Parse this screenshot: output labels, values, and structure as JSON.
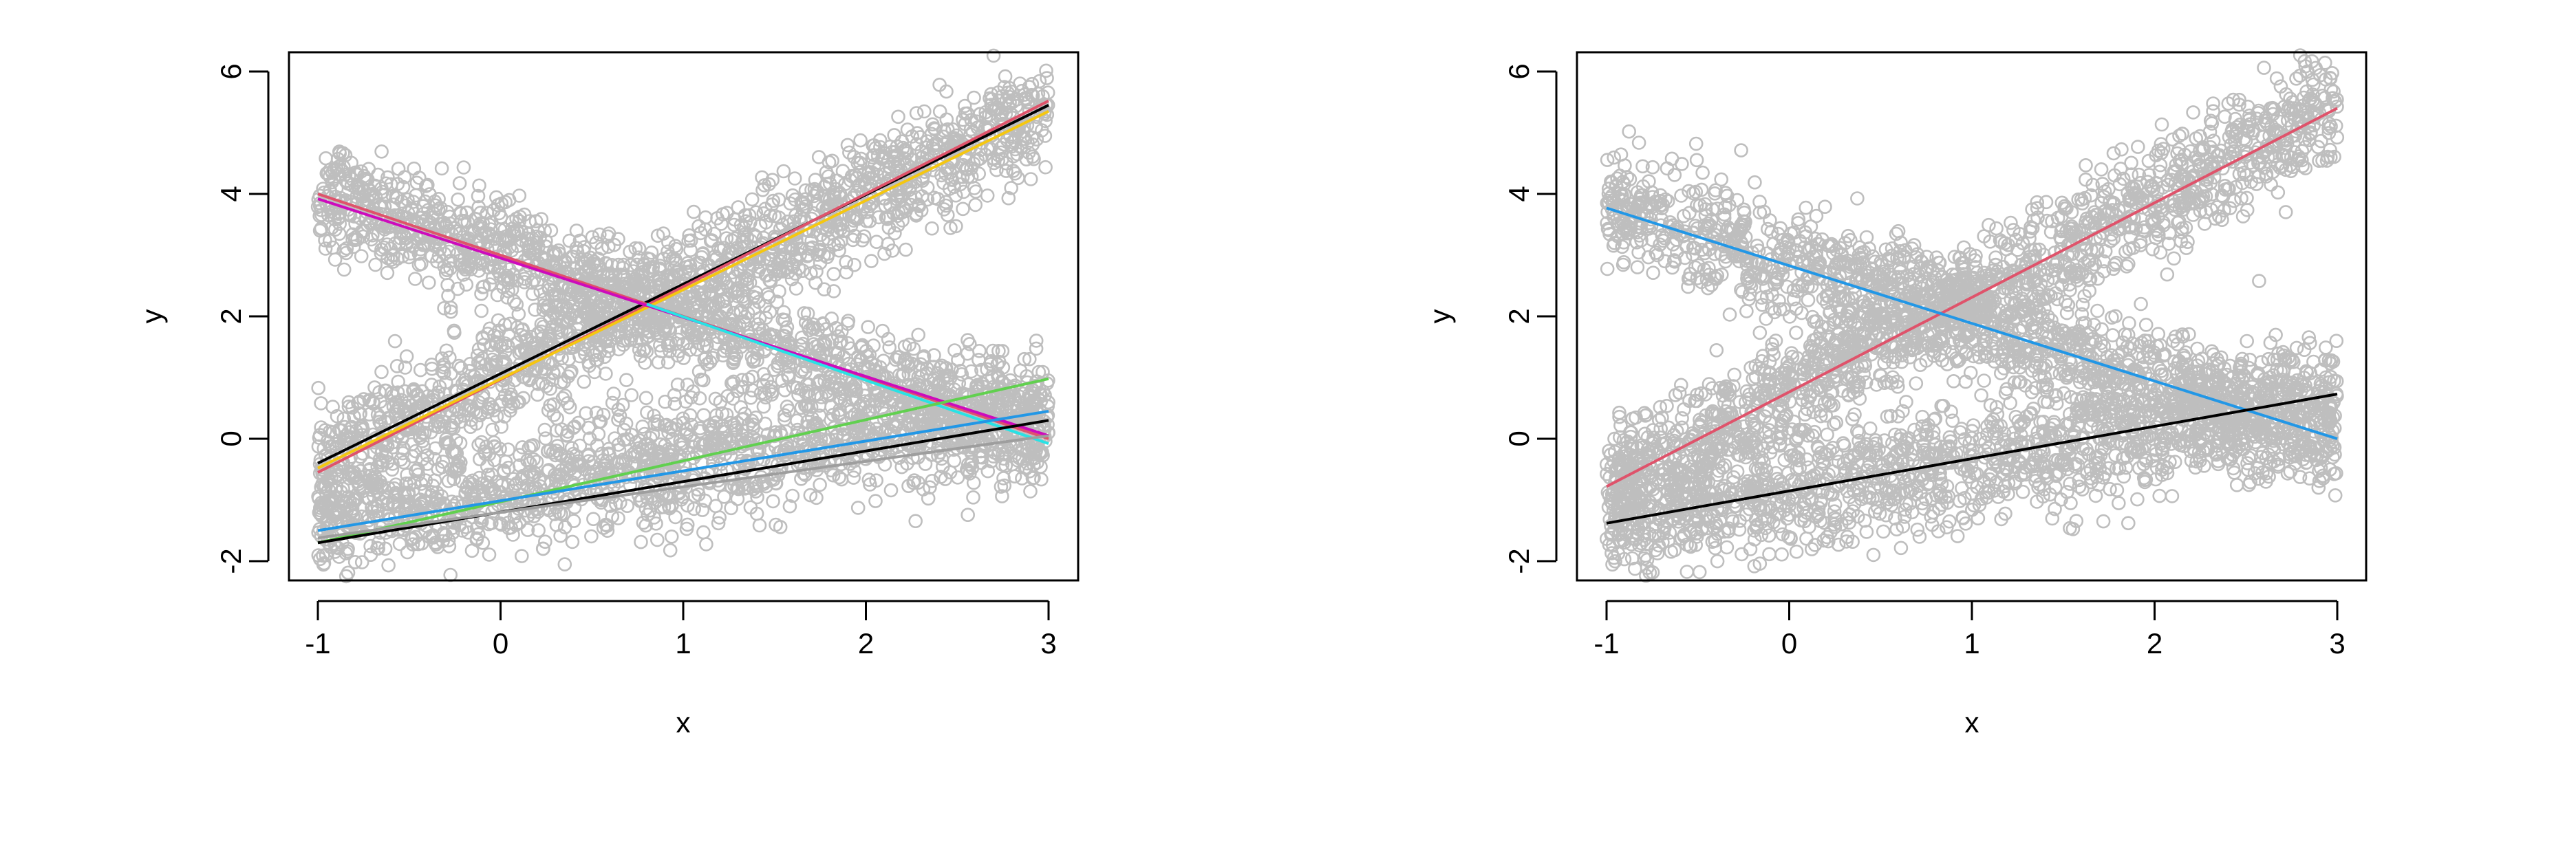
{
  "colors": {
    "points": "#BEBEBE",
    "black": "#000000",
    "red": "#DF536B",
    "green": "#61D04F",
    "blue": "#2297E6",
    "cyan": "#28E2E5",
    "magenta": "#CD0BBC",
    "yellow": "#F5C710",
    "gray": "#9E9E9E"
  },
  "chart_data": [
    {
      "type": "scatter",
      "title": "",
      "xlabel": "x",
      "ylabel": "y",
      "xlim": [
        -1.17,
        3.17
      ],
      "ylim": [
        -2.3,
        6.3
      ],
      "xticks": [
        "-1",
        "0",
        "1",
        "2",
        "3"
      ],
      "yticks": [
        "-2",
        "0",
        "2",
        "4",
        "6"
      ],
      "grid": false,
      "legend": "none",
      "point_clusters": [
        {
          "name": "rising",
          "intercept": 1.05,
          "slope": 1.45,
          "noise_sd": 0.45
        },
        {
          "name": "falling",
          "intercept": 3.0,
          "slope": -1.0,
          "noise_sd": 0.45
        },
        {
          "name": "low",
          "intercept": -0.85,
          "slope": 0.45,
          "noise_sd": 0.5
        }
      ],
      "lines": [
        {
          "name": "black-rising",
          "color": "black",
          "x": [
            -1,
            3
          ],
          "y": [
            -0.4,
            5.45
          ]
        },
        {
          "name": "red-rising",
          "color": "red",
          "x": [
            -1,
            3
          ],
          "y": [
            -0.55,
            5.52
          ]
        },
        {
          "name": "yellow-rising",
          "color": "yellow",
          "x": [
            -1,
            3
          ],
          "y": [
            -0.48,
            5.35
          ]
        },
        {
          "name": "red-falling",
          "color": "red",
          "x": [
            -1,
            3
          ],
          "y": [
            4.0,
            0.0
          ]
        },
        {
          "name": "magenta-falling",
          "color": "magenta",
          "x": [
            -1,
            3
          ],
          "y": [
            3.92,
            0.05
          ]
        },
        {
          "name": "cyan-falling",
          "color": "cyan",
          "x": [
            0.8,
            3
          ],
          "y": [
            2.2,
            -0.08
          ]
        },
        {
          "name": "green-low",
          "color": "green",
          "x": [
            -1,
            3
          ],
          "y": [
            -1.7,
            0.98
          ]
        },
        {
          "name": "blue-low",
          "color": "blue",
          "x": [
            -1,
            3
          ],
          "y": [
            -1.5,
            0.45
          ]
        },
        {
          "name": "black-low",
          "color": "black",
          "x": [
            -1,
            3
          ],
          "y": [
            -1.7,
            0.3
          ]
        },
        {
          "name": "gray-low",
          "color": "gray",
          "x": [
            -1,
            3
          ],
          "y": [
            -1.62,
            0.05
          ]
        }
      ]
    },
    {
      "type": "scatter",
      "title": "",
      "xlabel": "x",
      "ylabel": "y",
      "xlim": [
        -1.17,
        3.17
      ],
      "ylim": [
        -2.3,
        6.3
      ],
      "xticks": [
        "-1",
        "0",
        "1",
        "2",
        "3"
      ],
      "yticks": [
        "-2",
        "0",
        "2",
        "4",
        "6"
      ],
      "grid": false,
      "legend": "none",
      "point_clusters": [
        {
          "name": "rising",
          "intercept": 0.8,
          "slope": 1.55,
          "noise_sd": 0.45
        },
        {
          "name": "falling",
          "intercept": 2.85,
          "slope": -0.95,
          "noise_sd": 0.45
        },
        {
          "name": "low",
          "intercept": -0.85,
          "slope": 0.5,
          "noise_sd": 0.5
        }
      ],
      "lines": [
        {
          "name": "red-rising",
          "color": "red",
          "x": [
            -1,
            3
          ],
          "y": [
            -0.78,
            5.4
          ]
        },
        {
          "name": "blue-falling",
          "color": "blue",
          "x": [
            -1,
            3
          ],
          "y": [
            3.77,
            0.0
          ]
        },
        {
          "name": "black-low",
          "color": "black",
          "x": [
            -1,
            3
          ],
          "y": [
            -1.38,
            0.73
          ]
        }
      ]
    }
  ]
}
